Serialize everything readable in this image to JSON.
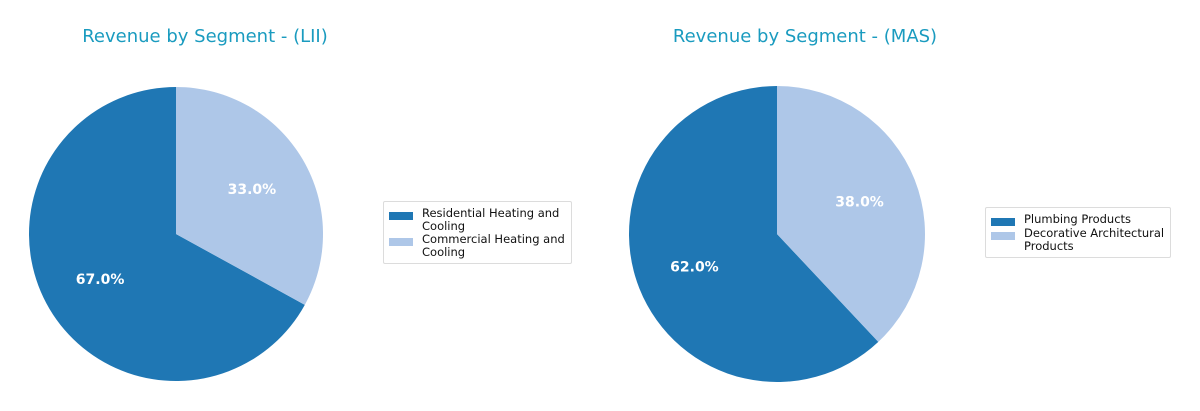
{
  "colors": {
    "title": "#1a9bbf",
    "dark_blue": "#1f77b4",
    "light_blue": "#aec7e8"
  },
  "chart_data": [
    {
      "type": "pie",
      "title": "Revenue by Segment - (LII)",
      "labels": [
        "Residential Heating and Cooling",
        "Commercial Heating and Cooling"
      ],
      "legend_labels": [
        "Residential Heating and\nCooling",
        "Commercial Heating and\nCooling"
      ],
      "values": [
        67.0,
        33.0
      ],
      "value_labels": [
        "67.0%",
        "33.0%"
      ],
      "colors": [
        "#1f77b4",
        "#aec7e8"
      ],
      "startangle": 90,
      "legend_position": "right"
    },
    {
      "type": "pie",
      "title": "Revenue by Segment - (MAS)",
      "labels": [
        "Plumbing Products",
        "Decorative Architectural Products"
      ],
      "legend_labels": [
        "Plumbing Products",
        "Decorative Architectural\nProducts"
      ],
      "values": [
        62.0,
        38.0
      ],
      "value_labels": [
        "62.0%",
        "38.0%"
      ],
      "colors": [
        "#1f77b4",
        "#aec7e8"
      ],
      "startangle": 90,
      "legend_position": "right"
    }
  ]
}
